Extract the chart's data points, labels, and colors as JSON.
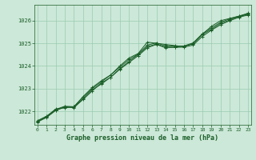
{
  "title": "Graphe pression niveau de la mer (hPa)",
  "x_ticks": [
    0,
    1,
    2,
    3,
    4,
    5,
    6,
    7,
    8,
    9,
    10,
    11,
    12,
    13,
    14,
    15,
    16,
    17,
    18,
    19,
    20,
    21,
    22,
    23
  ],
  "ylim": [
    1021.4,
    1026.7
  ],
  "yticks": [
    1022,
    1023,
    1024,
    1025,
    1026
  ],
  "background_color": "#cce8d8",
  "grid_color": "#99ccb0",
  "line_color": "#1a5e28",
  "title_color": "#1a5e28",
  "lines": [
    [
      1021.55,
      1021.75,
      1022.1,
      1022.15,
      1022.2,
      1022.65,
      1023.05,
      1023.35,
      1023.6,
      1024.0,
      1024.35,
      1024.55,
      1025.05,
      1025.0,
      1024.95,
      1024.9,
      1024.85,
      1025.0,
      1025.4,
      1025.75,
      1026.0,
      1026.1,
      1026.2,
      1026.3
    ],
    [
      1021.55,
      1021.75,
      1022.05,
      1022.2,
      1022.15,
      1022.55,
      1022.95,
      1023.2,
      1023.5,
      1023.85,
      1024.15,
      1024.45,
      1024.8,
      1024.95,
      1024.8,
      1024.82,
      1024.83,
      1024.92,
      1025.3,
      1025.58,
      1025.82,
      1026.0,
      1026.15,
      1026.25
    ],
    [
      1021.52,
      1021.72,
      1022.03,
      1022.18,
      1022.18,
      1022.52,
      1022.9,
      1023.25,
      1023.5,
      1023.88,
      1024.2,
      1024.5,
      1024.85,
      1024.97,
      1024.83,
      1024.83,
      1024.88,
      1024.97,
      1025.38,
      1025.62,
      1025.88,
      1026.03,
      1026.18,
      1026.28
    ],
    [
      1021.58,
      1021.78,
      1022.08,
      1022.22,
      1022.2,
      1022.62,
      1023.0,
      1023.3,
      1023.6,
      1023.95,
      1024.28,
      1024.52,
      1024.92,
      1025.02,
      1024.88,
      1024.88,
      1024.88,
      1025.02,
      1025.42,
      1025.68,
      1025.93,
      1026.08,
      1026.2,
      1026.33
    ]
  ]
}
